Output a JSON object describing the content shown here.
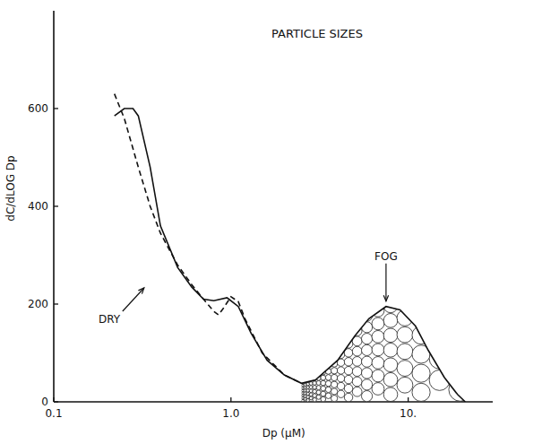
{
  "chart_data": {
    "type": "line",
    "title": "PARTICLE SIZES",
    "x_label": "Dp (μM)",
    "y_label": "dC/dLOG Dp",
    "log": "x",
    "grid": false,
    "xlim": [
      0.1,
      30
    ],
    "xticks": [
      0.1,
      {
        "value": 1,
        "label": "1.0"
      },
      {
        "value": 10,
        "label": "10."
      }
    ],
    "ylim": [
      0,
      800
    ],
    "yticks": [
      0,
      200,
      400,
      600
    ],
    "series": [
      {
        "name": "FOG",
        "color": "#111111",
        "line_style": "solid",
        "x": [
          0.22,
          0.25,
          0.28,
          0.3,
          0.35,
          0.4,
          0.5,
          0.6,
          0.7,
          0.8,
          0.95,
          1.1,
          1.3,
          1.6,
          2.0,
          2.5,
          3,
          4,
          5,
          6,
          7.5,
          9,
          11,
          13,
          16,
          19,
          21
        ],
        "values": [
          585,
          600,
          600,
          585,
          480,
          360,
          275,
          235,
          210,
          207,
          213,
          195,
          140,
          85,
          55,
          38,
          45,
          85,
          135,
          170,
          195,
          188,
          155,
          105,
          50,
          15,
          0
        ]
      },
      {
        "name": "DRY",
        "color": "#111111",
        "line_style": "dashed",
        "x": [
          0.22,
          0.25,
          0.3,
          0.35,
          0.4,
          0.5,
          0.6,
          0.7,
          0.8,
          0.85,
          0.9,
          1.0,
          1.1,
          1.2,
          1.5,
          2.0,
          2.5
        ],
        "values": [
          630,
          580,
          480,
          400,
          345,
          280,
          240,
          210,
          185,
          178,
          190,
          215,
          205,
          170,
          100,
          55,
          38
        ]
      }
    ]
  }
}
